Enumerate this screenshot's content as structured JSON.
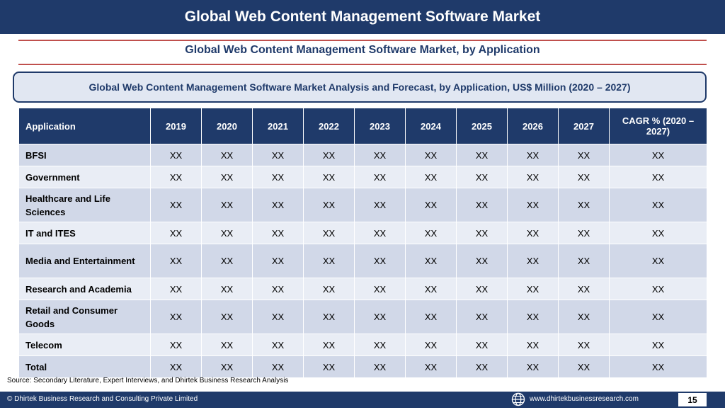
{
  "header": {
    "title": "Global Web Content Management Software Market"
  },
  "subtitle": "Global Web Content Management Software Market, by Application",
  "banner": "Global Web Content Management Software Market Analysis and Forecast, by Application, US$ Million (2020 – 2027)",
  "table": {
    "columns": [
      "Application",
      "2019",
      "2020",
      "2021",
      "2022",
      "2023",
      "2024",
      "2025",
      "2026",
      "2027",
      "CAGR % (2020 – 2027)"
    ],
    "rows": [
      {
        "label": "BFSI",
        "values": [
          "XX",
          "XX",
          "XX",
          "XX",
          "XX",
          "XX",
          "XX",
          "XX",
          "XX",
          "XX"
        ]
      },
      {
        "label": "Government",
        "values": [
          "XX",
          "XX",
          "XX",
          "XX",
          "XX",
          "XX",
          "XX",
          "XX",
          "XX",
          "XX"
        ]
      },
      {
        "label": "Healthcare and Life Sciences",
        "values": [
          "XX",
          "XX",
          "XX",
          "XX",
          "XX",
          "XX",
          "XX",
          "XX",
          "XX",
          "XX"
        ]
      },
      {
        "label": "IT and ITES",
        "values": [
          "XX",
          "XX",
          "XX",
          "XX",
          "XX",
          "XX",
          "XX",
          "XX",
          "XX",
          "XX"
        ]
      },
      {
        "label": "Media and Entertainment",
        "values": [
          "XX",
          "XX",
          "XX",
          "XX",
          "XX",
          "XX",
          "XX",
          "XX",
          "XX",
          "XX"
        ]
      },
      {
        "label": "Research and Academia",
        "values": [
          "XX",
          "XX",
          "XX",
          "XX",
          "XX",
          "XX",
          "XX",
          "XX",
          "XX",
          "XX"
        ]
      },
      {
        "label": "Retail and Consumer Goods",
        "values": [
          "XX",
          "XX",
          "XX",
          "XX",
          "XX",
          "XX",
          "XX",
          "XX",
          "XX",
          "XX"
        ]
      },
      {
        "label": "Telecom",
        "values": [
          "XX",
          "XX",
          "XX",
          "XX",
          "XX",
          "XX",
          "XX",
          "XX",
          "XX",
          "XX"
        ]
      },
      {
        "label": "Total",
        "values": [
          "XX",
          "XX",
          "XX",
          "XX",
          "XX",
          "XX",
          "XX",
          "XX",
          "XX",
          "XX"
        ]
      }
    ]
  },
  "source": "Source: Secondary Literature, Expert Interviews, and Dhirtek Business Research Analysis",
  "footer": {
    "copyright": "© Dhirtek Business Research and Consulting Private Limited",
    "website": "www.dhirtekbusinessresearch.com",
    "page_number": "15",
    "globe_icon": "globe-icon"
  },
  "colors": {
    "primary": "#1f3a6a",
    "accent_rule": "#c0504d",
    "row_dark": "#d1d8e8",
    "row_light": "#e9edf5"
  }
}
